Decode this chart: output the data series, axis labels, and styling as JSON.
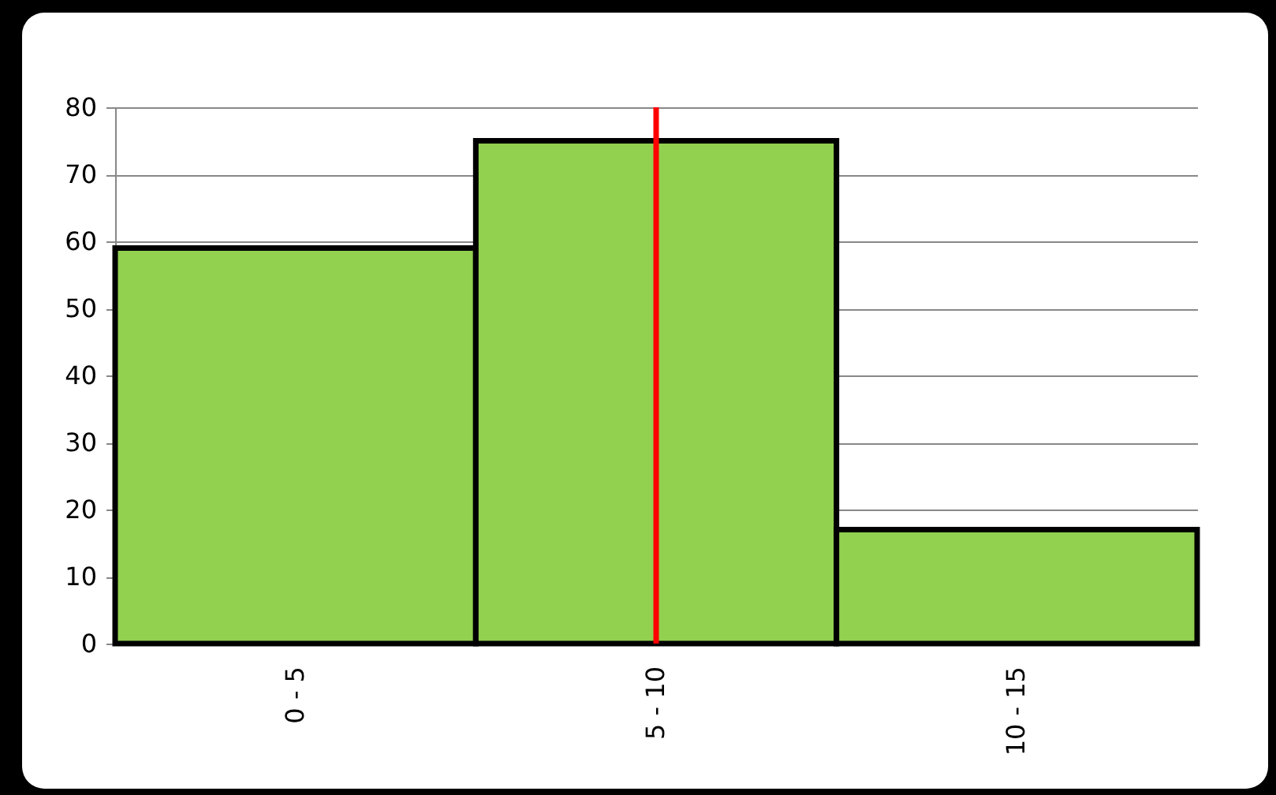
{
  "chart_data": {
    "type": "bar",
    "categories": [
      "0 - 5",
      "5 - 10",
      "10 - 15"
    ],
    "values": [
      59,
      75,
      17
    ],
    "color": "#92d050",
    "ylim": [
      0,
      80
    ],
    "yticks": [
      0,
      10,
      20,
      30,
      40,
      50,
      60,
      70,
      80
    ],
    "grid": "y",
    "ref_lines": [
      {
        "axis": "x",
        "value": "5 - 10",
        "color": "#ff0000"
      }
    ]
  }
}
